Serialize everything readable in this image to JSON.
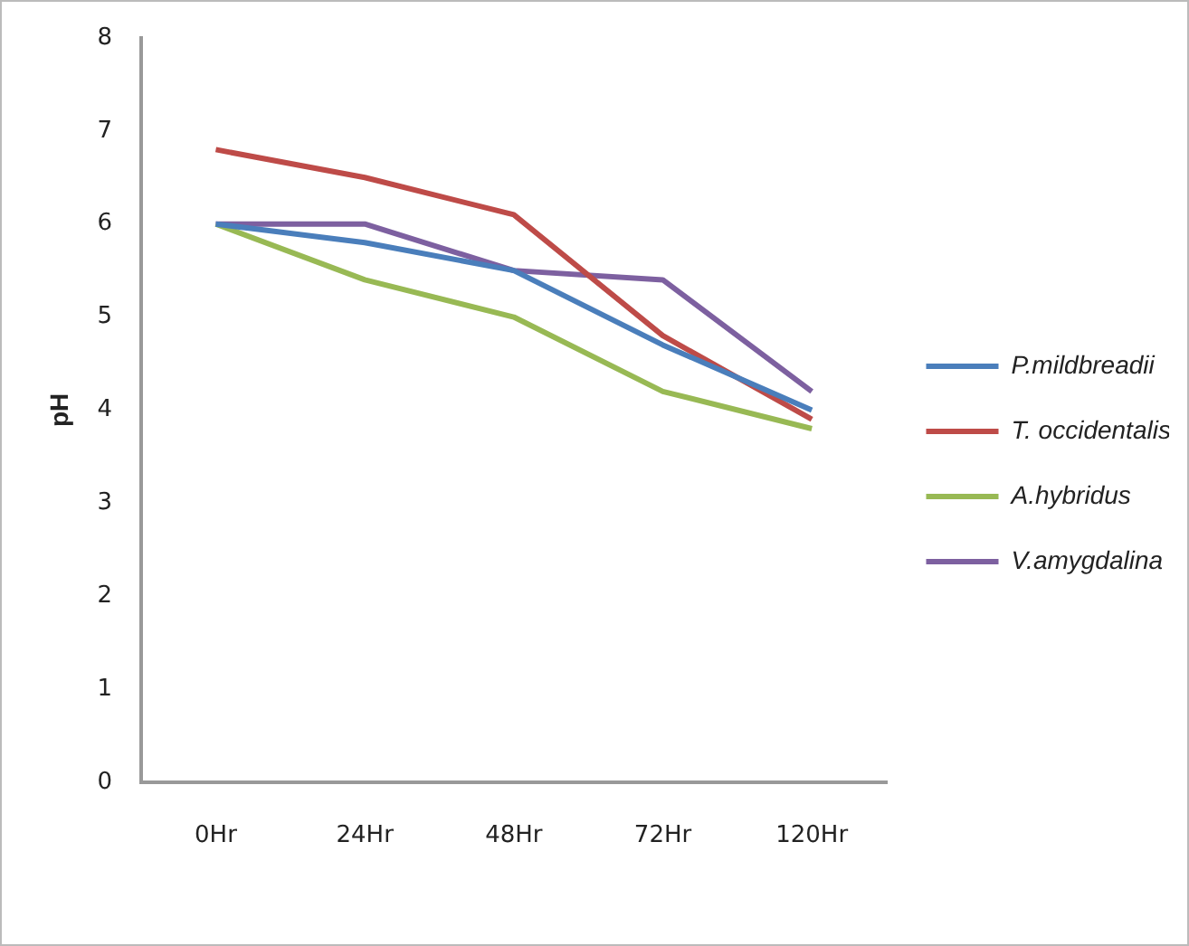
{
  "chart_data": {
    "type": "line",
    "ylabel": "pH",
    "categories": [
      "0Hr",
      "24Hr",
      "48Hr",
      "72Hr",
      "120Hr"
    ],
    "series": [
      {
        "name": "P.mildbreadii",
        "color": "#4a7ebb",
        "values": [
          6.0,
          5.8,
          5.5,
          4.7,
          4.0
        ]
      },
      {
        "name": "T. occidentalis",
        "color": "#be4b48",
        "values": [
          6.8,
          6.5,
          6.1,
          4.8,
          3.9
        ]
      },
      {
        "name": "A.hybridus",
        "color": "#98b954",
        "values": [
          6.0,
          5.4,
          5.0,
          4.2,
          3.8
        ]
      },
      {
        "name": "V.amygdalina",
        "color": "#7d60a0",
        "values": [
          6.0,
          6.0,
          5.5,
          5.4,
          4.2
        ]
      }
    ],
    "ylim": [
      0,
      8
    ],
    "yticks": [
      0,
      1,
      2,
      3,
      4,
      5,
      6,
      7,
      8
    ],
    "grid": false,
    "legend": "right",
    "marker": "none",
    "line_style": "solid"
  }
}
